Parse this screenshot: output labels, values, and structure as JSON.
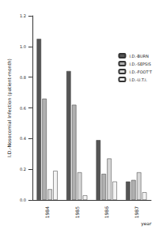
{
  "chart_data": {
    "type": "bar",
    "y_label": "I.D.-Nosocomial Infection (patient-month)",
    "x_label": "year",
    "categories": [
      "1984",
      "1985",
      "1986",
      "1987"
    ],
    "series": [
      {
        "name": "I.D.-BURN",
        "color": "#555555",
        "values": [
          1.05,
          0.84,
          0.39,
          0.12
        ]
      },
      {
        "name": "I.D.-SEPSIS",
        "color": "#b0b0b0",
        "values": [
          0.66,
          0.62,
          0.17,
          0.13
        ]
      },
      {
        "name": "I.D.-FOOT'T",
        "color": "#d8d8d8",
        "values": [
          0.07,
          0.18,
          0.27,
          0.18
        ]
      },
      {
        "name": "I.D.-U.T.I.",
        "color": "#f4f4f4",
        "values": [
          0.19,
          0.03,
          0.12,
          0.05
        ]
      }
    ],
    "ylim": [
      0,
      1.2
    ],
    "yticks": [
      {
        "value": 0,
        "label": "0.0"
      },
      0.2,
      0.4,
      0.6,
      0.8,
      {
        "value": 1,
        "label": "1.0"
      },
      1.2
    ],
    "grid": false,
    "legend": "top-right"
  }
}
